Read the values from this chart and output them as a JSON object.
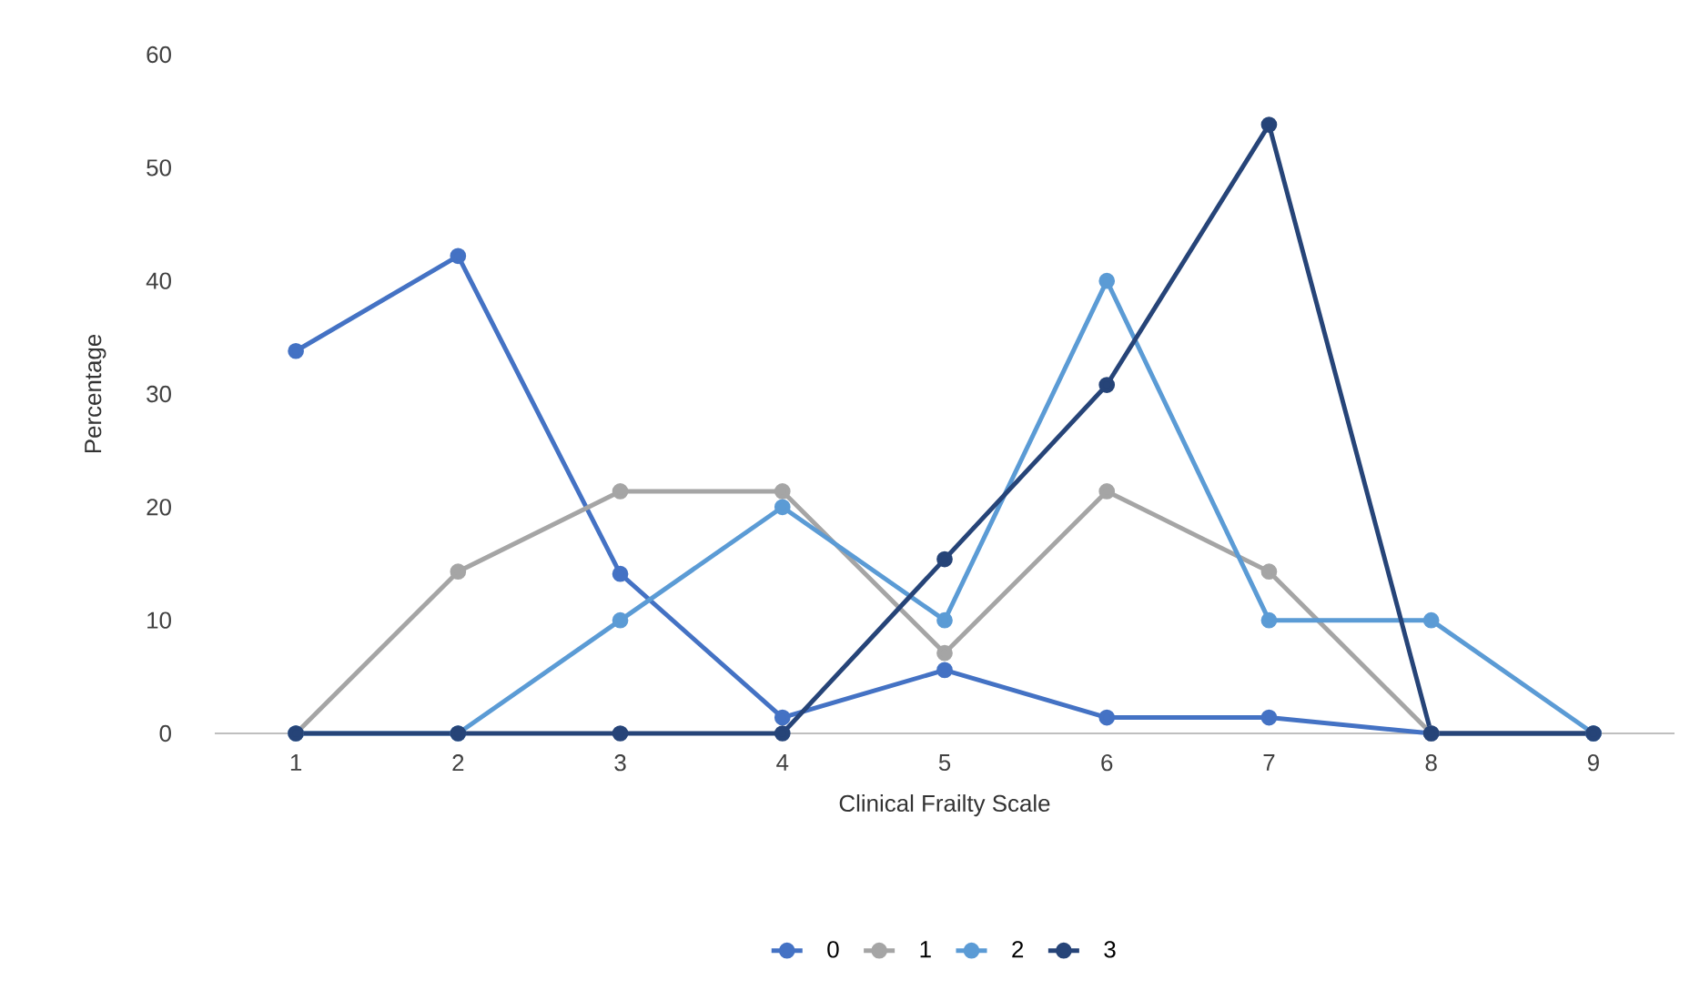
{
  "chart_data": {
    "type": "line",
    "xlabel": "Clinical Frailty Scale",
    "ylabel": "Percentage",
    "categories": [
      "1",
      "2",
      "3",
      "4",
      "5",
      "6",
      "7",
      "8",
      "9"
    ],
    "series": [
      {
        "name": "0",
        "color": "#4472c4",
        "values": [
          33.8,
          42.2,
          14.1,
          1.4,
          5.6,
          1.4,
          1.4,
          0,
          0
        ]
      },
      {
        "name": "1",
        "color": "#a5a5a5",
        "values": [
          0,
          14.3,
          21.4,
          21.4,
          7.1,
          21.4,
          14.3,
          0,
          0
        ]
      },
      {
        "name": "2",
        "color": "#5b9bd5",
        "values": [
          0,
          0,
          10,
          20,
          10,
          40,
          10,
          10,
          0
        ]
      },
      {
        "name": "3",
        "color": "#264478",
        "values": [
          0,
          0,
          0,
          0,
          15.4,
          30.8,
          53.8,
          0,
          0
        ]
      }
    ],
    "ylim": [
      0,
      60
    ],
    "yticks": [
      0,
      10,
      20,
      30,
      40,
      50,
      60
    ],
    "grid": false,
    "legend": "bottom",
    "marker": "circle",
    "line_style": "solid"
  }
}
